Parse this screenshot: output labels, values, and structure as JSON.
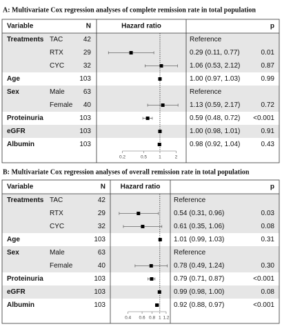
{
  "chart_data": [
    {
      "type": "forest",
      "title": "A: Multivariate Cox regression analyses of complete remission rate in total population",
      "columns": [
        "Variable",
        "N",
        "Hazard ratio",
        "p"
      ],
      "variables": [
        "Treatments",
        null,
        null,
        "Age",
        "Sex",
        null,
        "Proteinuria",
        "eGFR",
        "Albumin"
      ],
      "subgroups": [
        "TAC",
        "RTX",
        "CYC",
        null,
        "Male",
        "Female",
        null,
        null,
        null
      ],
      "n": [
        42,
        29,
        32,
        103,
        63,
        40,
        103,
        103,
        103
      ],
      "values": [
        null,
        0.29,
        1.06,
        1.0,
        null,
        1.13,
        0.59,
        1.0,
        0.98
      ],
      "lower": [
        null,
        0.11,
        0.53,
        0.97,
        null,
        0.59,
        0.48,
        0.98,
        0.92
      ],
      "upper": [
        null,
        0.77,
        2.12,
        1.03,
        null,
        2.17,
        0.72,
        1.01,
        1.04
      ],
      "value_labels": [
        "Reference",
        "0.29 (0.11, 0.77)",
        "1.06 (0.53, 2.12)",
        "1.00 (0.97, 1.03)",
        "Reference",
        "1.13 (0.59, 2.17)",
        "0.59 (0.48, 0.72)",
        "1.00 (0.98, 1.01)",
        "0.98 (0.92, 1.04)"
      ],
      "p": [
        null,
        "0.01",
        "0.87",
        "0.99",
        null,
        "0.72",
        "<0.001",
        "0.91",
        "0.43"
      ],
      "log_scale": true,
      "xlim": [
        0.07,
        2.9
      ],
      "xticks": [
        0.2,
        0.5,
        1,
        2
      ]
    },
    {
      "type": "forest",
      "title": "B: Multivariate Cox regression analyses of overall remission rate in total population",
      "columns": [
        "Variable",
        "N",
        "Hazard ratio",
        "p"
      ],
      "variables": [
        "Treatments",
        null,
        null,
        "Age",
        "Sex",
        null,
        "Proteinuria",
        "eGFR",
        "Albumin"
      ],
      "subgroups": [
        "TAC",
        "RTX",
        "CYC",
        null,
        "Male",
        "Female",
        null,
        null,
        null
      ],
      "n": [
        42,
        29,
        32,
        103,
        63,
        40,
        103,
        103,
        103
      ],
      "values": [
        null,
        0.54,
        0.61,
        1.01,
        null,
        0.78,
        0.79,
        0.99,
        0.92
      ],
      "lower": [
        null,
        0.31,
        0.35,
        0.99,
        null,
        0.49,
        0.71,
        0.98,
        0.88
      ],
      "upper": [
        null,
        0.96,
        1.06,
        1.03,
        null,
        1.24,
        0.87,
        1.0,
        0.97
      ],
      "value_labels": [
        "Reference",
        "0.54 (0.31, 0.96)",
        "0.61 (0.35, 1.06)",
        "1.01 (0.99, 1.03)",
        "Reference",
        "0.78 (0.49, 1.24)",
        "0.79 (0.71, 0.87)",
        "0.99 (0.98, 1.00)",
        "0.92 (0.88, 0.97)"
      ],
      "p": [
        null,
        "0.03",
        "0.08",
        "0.31",
        null,
        "0.30",
        "<0.001",
        "0.08",
        "<0.001"
      ],
      "log_scale": true,
      "xlim": [
        0.25,
        1.3
      ],
      "xticks": [
        0.4,
        0.6,
        0.8,
        1,
        1.2
      ]
    }
  ]
}
